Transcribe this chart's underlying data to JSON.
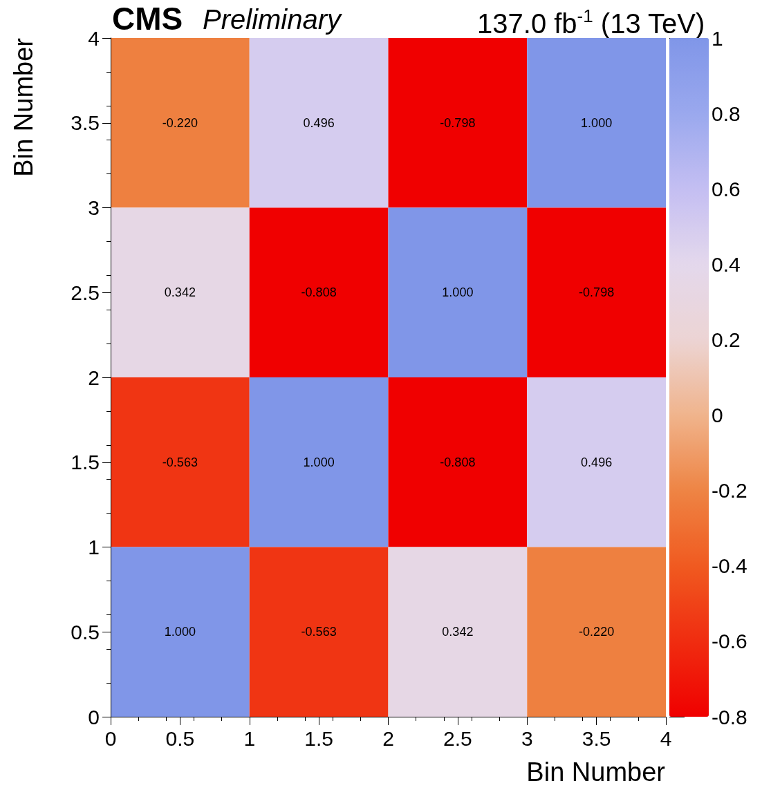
{
  "chart_data": {
    "type": "heatmap",
    "title": "CMS",
    "subtitle": "Preliminary",
    "annotations": [
      "137.0 fb$^{-1}$ (13 TeV)"
    ],
    "xlabel": "Bin Number",
    "ylabel": "Bin Number",
    "x": [
      0.5,
      1.5,
      2.5,
      3.5
    ],
    "xlim": [
      0,
      4
    ],
    "xticks": [
      0,
      0.5,
      1,
      1.5,
      2,
      2.5,
      3,
      3.5,
      4
    ],
    "ylim": [
      0,
      4
    ],
    "yticks": [
      0,
      0.5,
      1,
      1.5,
      2,
      2.5,
      3,
      3.5,
      4
    ],
    "cells": [
      [
        -0.22,
        0.496,
        -0.798,
        1.0
      ],
      [
        0.342,
        -0.808,
        1.0,
        -0.798
      ],
      [
        -0.563,
        1.0,
        -0.808,
        0.496
      ],
      [
        1.0,
        -0.563,
        0.342,
        -0.22
      ]
    ],
    "cell_labels": [
      [
        "-0.220",
        "0.496",
        "-0.798",
        "1.000"
      ],
      [
        "0.342",
        "-0.808",
        "1.000",
        "-0.798"
      ],
      [
        "-0.563",
        "1.000",
        "-0.808",
        "0.496"
      ],
      [
        "1.000",
        "-0.563",
        "0.342",
        "-0.220"
      ]
    ],
    "clim": [
      -0.8,
      1
    ],
    "cticks": [
      -0.8,
      -0.6,
      -0.4,
      -0.2,
      0,
      0.2,
      0.4,
      0.6,
      0.8,
      1
    ]
  }
}
